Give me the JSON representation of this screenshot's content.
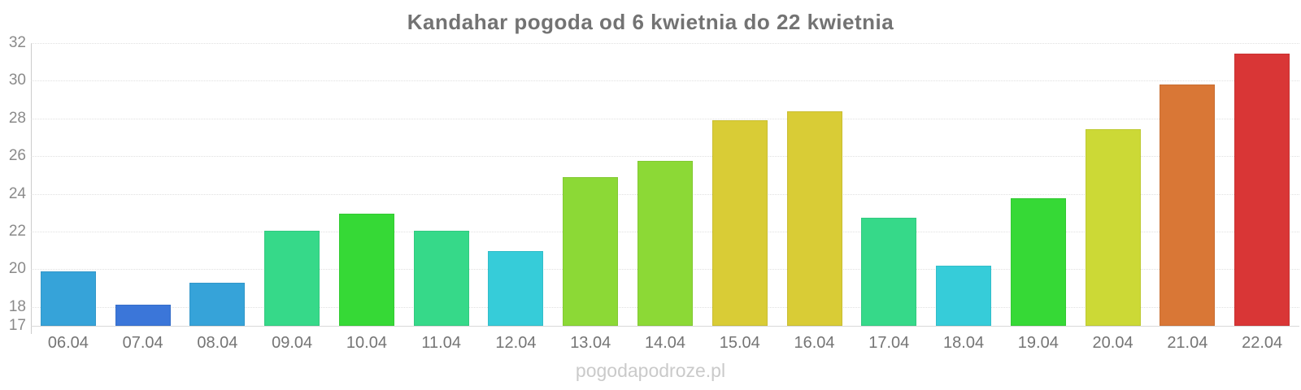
{
  "watermark": "pogodapodroze.pl",
  "chart_data": {
    "type": "bar",
    "title": "Kandahar pogoda od 6 kwietnia do 22 kwietnia",
    "xlabel": "",
    "ylabel": "",
    "ylim": [
      17,
      32
    ],
    "yticks": [
      17,
      18,
      20,
      22,
      24,
      26,
      28,
      30,
      32
    ],
    "grid": true,
    "legend": false,
    "categories": [
      "06.04",
      "07.04",
      "08.04",
      "09.04",
      "10.04",
      "11.04",
      "12.04",
      "13.04",
      "14.04",
      "15.04",
      "16.04",
      "17.04",
      "18.04",
      "19.04",
      "20.04",
      "21.04",
      "22.04"
    ],
    "values": [
      19.9,
      18.1,
      19.3,
      22.05,
      22.95,
      22.05,
      20.95,
      24.9,
      25.75,
      27.9,
      28.4,
      22.75,
      20.2,
      23.75,
      27.45,
      29.8,
      31.45
    ],
    "bar_colors": [
      "#36a3d9",
      "#3b76d9",
      "#36a3d9",
      "#36d989",
      "#36d936",
      "#36d989",
      "#36ccd9",
      "#8cd936",
      "#8cd936",
      "#d9cc36",
      "#d9cc36",
      "#36d989",
      "#36ccd9",
      "#36d936",
      "#ccd936",
      "#d97736",
      "#d93636"
    ],
    "colors_meaning": {
      "cold_blue": "#3b76d9",
      "cool_blue": "#36a3d9",
      "turquoise": "#36ccd9",
      "emerald": "#36d989",
      "green": "#36d936",
      "yellow_green": "#8cd936",
      "lime_yellow": "#ccd936",
      "mustard": "#d9cc36",
      "orange": "#d97736",
      "red": "#d93636"
    }
  }
}
